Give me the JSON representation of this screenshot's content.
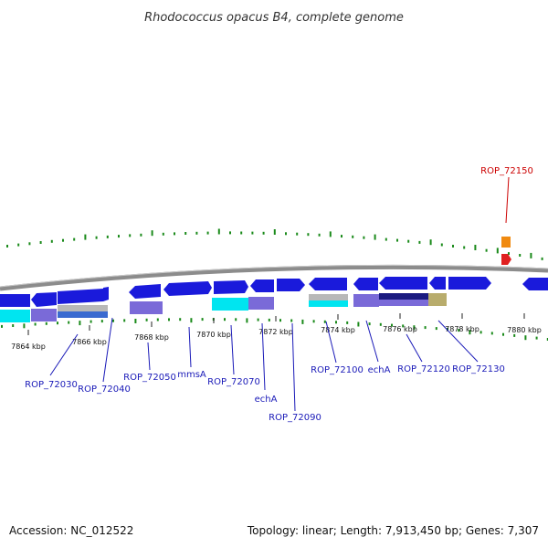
{
  "title": "Rhodococcus opacus B4, complete genome",
  "footer": {
    "accession": "Accession: NC_012522",
    "stats": "Topology: linear; Length: 7,913,450 bp; Genes: 7,307"
  },
  "colors": {
    "gene": "#1a1adb",
    "highlight_label": "#cc0000",
    "gene_label": "#1a1ab8",
    "backbone": "#8c8c8c",
    "ticks": "#1a8a1a",
    "cyan": "#00e5f0",
    "lavender": "#7a6ad8",
    "navy": "#1a1a80",
    "grey": "#b8b8b8",
    "khaki": "#b8ac6c",
    "orange": "#f08a10",
    "red": "#e02020"
  },
  "kbp_ticks": [
    "7864 kbp",
    "7866 kbp",
    "7868 kbp",
    "7870 kbp",
    "7872 kbp",
    "7874 kbp",
    "7876 kbp",
    "7878 kbp",
    "7880 kbp"
  ],
  "gene_labels": [
    "ROP_72150",
    "ROP_72030",
    "ROP_72040",
    "ROP_72050",
    "mmsA",
    "ROP_72070",
    "echA",
    "ROP_72090",
    "ROP_72100",
    "echA",
    "ROP_72120",
    "ROP_72130"
  ]
}
